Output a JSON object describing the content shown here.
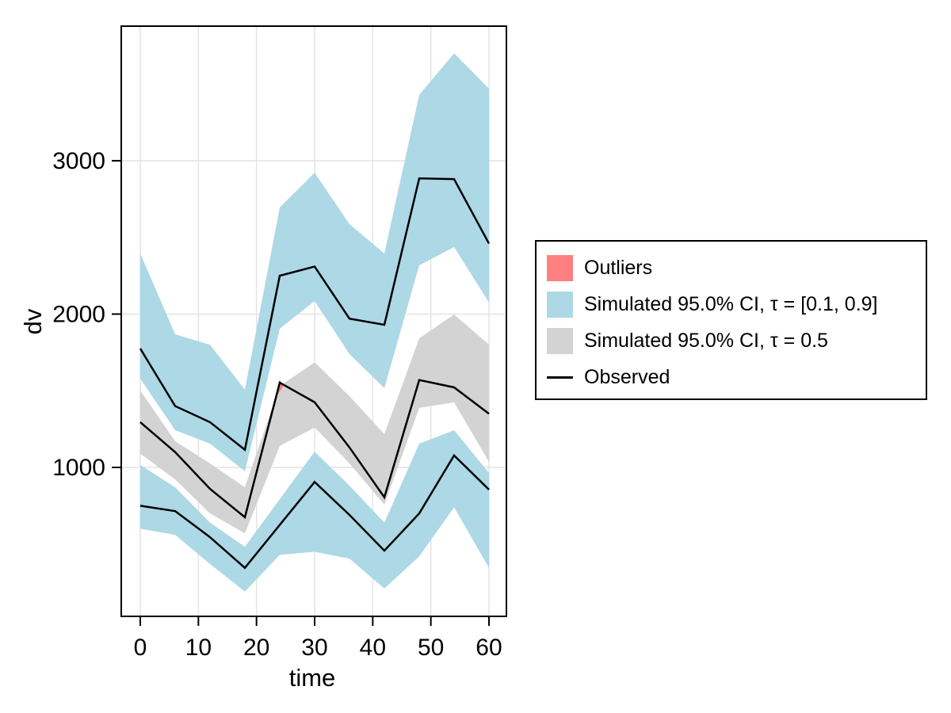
{
  "chart_data": {
    "type": "line",
    "title": "",
    "xlabel": "time",
    "ylabel": "dv",
    "x": [
      0,
      6,
      12,
      18,
      24,
      30,
      36,
      42,
      48,
      54,
      60
    ],
    "x_ticks": [
      0,
      10,
      20,
      30,
      40,
      50,
      60
    ],
    "y_ticks": [
      1000,
      2000,
      3000
    ],
    "xlim": [
      -3.3,
      63
    ],
    "ylim": [
      30,
      3880
    ],
    "grid": true,
    "legend_position": "right-outside",
    "bands": [
      {
        "name": "Simulated 95.0% CI, τ = [0.1, 0.9] (upper band)",
        "color": "#ADD8E6",
        "top": [
          2395,
          1868,
          1800,
          1507,
          2695,
          2922,
          2587,
          2395,
          3430,
          3700,
          3470
        ],
        "bottom": [
          1579,
          1243,
          1155,
          975,
          1905,
          2085,
          1739,
          1517,
          2318,
          2437,
          2075
        ]
      },
      {
        "name": "Simulated 95.0% CI, τ = 0.5 (median band)",
        "color": "#D3D3D3",
        "top": [
          1501,
          1171,
          1026,
          871,
          1530,
          1685,
          1465,
          1217,
          1842,
          1997,
          1801
        ],
        "bottom": [
          1090,
          922,
          700,
          570,
          1140,
          1260,
          1026,
          757,
          1388,
          1424,
          1036
        ]
      },
      {
        "name": "Simulated 95.0% CI, τ = [0.1, 0.9] (lower band)",
        "color": "#ADD8E6",
        "top": [
          1016,
          870,
          640,
          483,
          793,
          1103,
          881,
          640,
          1155,
          1243,
          964
        ],
        "bottom": [
          600,
          560,
          370,
          190,
          430,
          450,
          405,
          210,
          420,
          740,
          345
        ]
      }
    ],
    "series": [
      {
        "name": "Observed upper percentile",
        "color": "#000000",
        "values": [
          1775,
          1400,
          1295,
          1115,
          2250,
          2310,
          1970,
          1930,
          2885,
          2880,
          2460
        ]
      },
      {
        "name": "Observed median",
        "color": "#000000",
        "values": [
          1295,
          1100,
          860,
          675,
          1553,
          1425,
          1130,
          805,
          1570,
          1522,
          1350
        ]
      },
      {
        "name": "Observed lower percentile",
        "color": "#000000",
        "values": [
          750,
          715,
          545,
          345,
          625,
          905,
          690,
          457,
          700,
          1078,
          855
        ]
      }
    ],
    "outliers": {
      "color": "#FF8080",
      "polygon": [
        [
          23.3,
          1455
        ],
        [
          24.0,
          1572
        ],
        [
          24.6,
          1528
        ]
      ]
    },
    "legend": [
      {
        "label": "Outliers",
        "color": "#FF8080",
        "type": "swatch"
      },
      {
        "label": "Simulated 95.0% CI, τ = [0.1, 0.9]",
        "color": "#ADD8E6",
        "type": "swatch"
      },
      {
        "label": "Simulated 95.0% CI, τ = 0.5",
        "color": "#D3D3D3",
        "type": "swatch"
      },
      {
        "label": "Observed",
        "color": "#000000",
        "type": "line"
      }
    ],
    "style": {
      "grid_color": "#E4E4E4",
      "frame_color": "#000000",
      "background": "#FFFFFF"
    }
  }
}
